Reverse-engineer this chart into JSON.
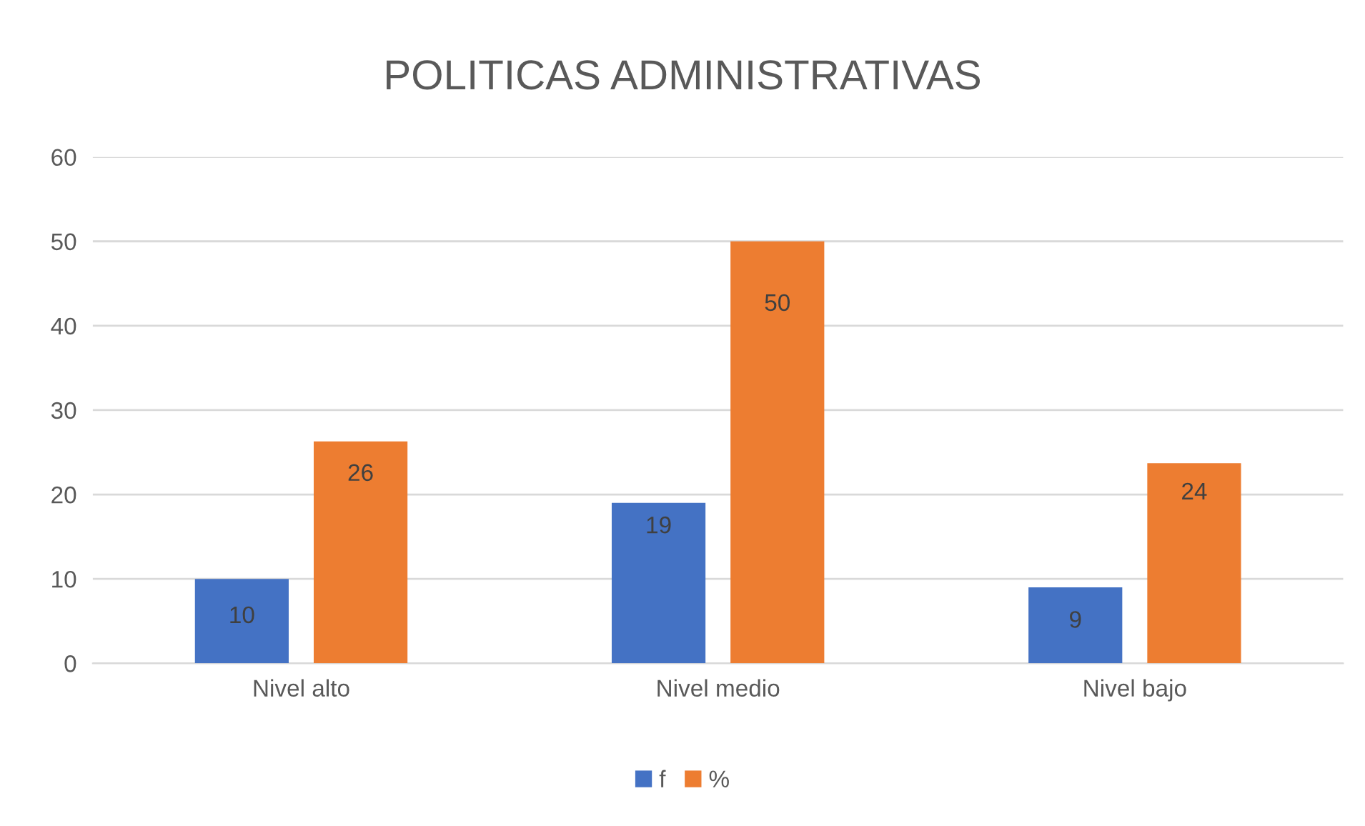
{
  "chart_data": {
    "type": "bar",
    "title": "POLITICAS ADMINISTRATIVAS",
    "categories": [
      "Nivel alto",
      "Nivel medio",
      "Nivel bajo"
    ],
    "series": [
      {
        "name": "f",
        "color": "#4472c4",
        "values": [
          10,
          19,
          9
        ],
        "value_labels": [
          "10",
          "19",
          "9"
        ]
      },
      {
        "name": "%",
        "color": "#ed7d31",
        "values": [
          26.3,
          50,
          23.7
        ],
        "value_labels": [
          "26",
          "50",
          "24"
        ]
      }
    ],
    "ylim": [
      0,
      60
    ],
    "yticks": [
      0,
      10,
      20,
      30,
      40,
      50,
      60
    ],
    "grid": "y",
    "legend": "bottom"
  }
}
